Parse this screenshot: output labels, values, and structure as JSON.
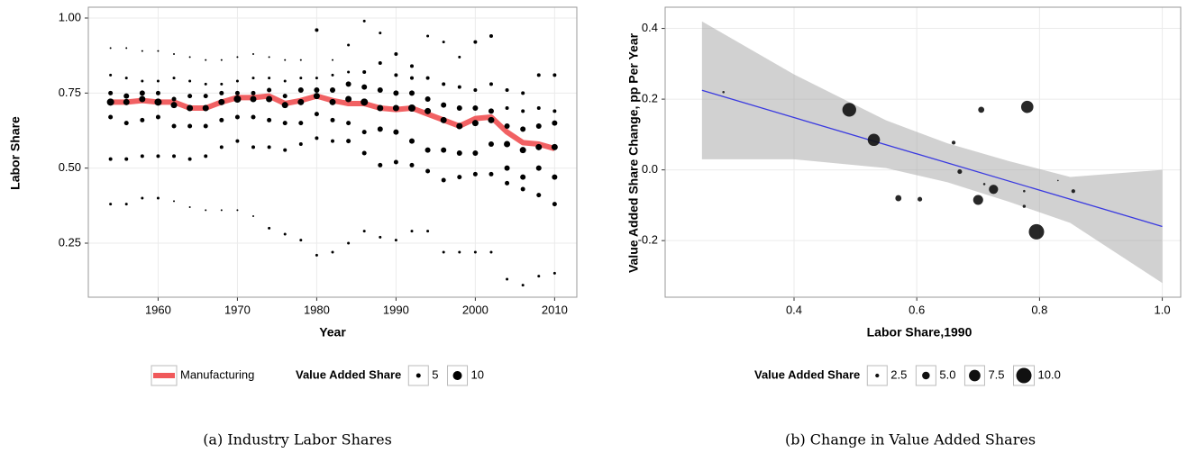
{
  "chart_data": [
    {
      "type": "scatter",
      "caption": "(a) Industry Labor Shares",
      "x_label": "Year",
      "y_label": "Labor Share",
      "xlim": [
        1951.2,
        2012.8
      ],
      "ylim": [
        0.07,
        1.036
      ],
      "xticks": [
        1960,
        1970,
        1980,
        1990,
        2000,
        2010
      ],
      "yticks": [
        0.25,
        {
          "value": 0.5,
          "label": "0.50"
        },
        {
          "value": 0.75,
          "label": "0.75"
        },
        {
          "value": 1,
          "label": "1.00"
        }
      ],
      "grid": true,
      "color": "#000000",
      "x": [
        1954,
        1956,
        1958,
        1960,
        1962,
        1964,
        1966,
        1968,
        1970,
        1972,
        1974,
        1976,
        1978,
        1980,
        1982,
        1984,
        1986,
        1988,
        1990,
        1992,
        1994,
        1996,
        1998,
        2000,
        2002,
        2004,
        2006,
        2008,
        2010
      ],
      "y": [
        [
          0.9,
          0.81,
          0.75,
          0.72,
          0.67,
          0.53,
          0.38
        ],
        [
          0.9,
          0.8,
          0.74,
          0.72,
          0.65,
          0.53,
          0.38
        ],
        [
          0.89,
          0.79,
          0.75,
          0.73,
          0.66,
          0.54,
          0.4
        ],
        [
          0.89,
          0.79,
          0.75,
          0.72,
          0.67,
          0.54,
          0.4
        ],
        [
          0.88,
          0.8,
          0.73,
          0.71,
          0.64,
          0.54,
          0.39
        ],
        [
          0.87,
          0.79,
          0.74,
          0.7,
          0.64,
          0.53,
          0.37
        ],
        [
          0.86,
          0.78,
          0.74,
          0.7,
          0.64,
          0.54,
          0.36
        ],
        [
          0.86,
          0.78,
          0.75,
          0.72,
          0.66,
          0.57,
          0.36
        ],
        [
          0.87,
          0.79,
          0.75,
          0.73,
          0.67,
          0.59,
          0.36
        ],
        [
          0.88,
          0.8,
          0.75,
          0.73,
          0.67,
          0.57,
          0.34
        ],
        [
          0.87,
          0.8,
          0.76,
          0.73,
          0.66,
          0.57,
          0.3
        ],
        [
          0.86,
          0.79,
          0.74,
          0.71,
          0.65,
          0.56,
          0.28
        ],
        [
          0.86,
          0.8,
          0.76,
          0.72,
          0.65,
          0.58,
          0.26
        ],
        [
          0.96,
          0.8,
          0.76,
          0.74,
          0.68,
          0.6,
          0.21
        ],
        [
          0.86,
          0.81,
          0.76,
          0.72,
          0.66,
          0.59,
          0.22
        ],
        [
          0.91,
          0.82,
          0.78,
          0.73,
          0.65,
          0.59,
          0.25
        ],
        [
          0.99,
          0.82,
          0.77,
          0.72,
          0.62,
          0.55,
          0.29
        ],
        [
          0.95,
          0.85,
          0.76,
          0.7,
          0.63,
          0.51,
          0.27
        ],
        [
          0.88,
          0.81,
          0.75,
          0.7,
          0.62,
          0.52,
          0.26
        ],
        [
          0.84,
          0.8,
          0.75,
          0.7,
          0.59,
          0.51,
          0.29
        ],
        [
          0.94,
          0.8,
          0.73,
          0.69,
          0.56,
          0.49,
          0.29
        ],
        [
          0.92,
          0.78,
          0.71,
          0.66,
          0.56,
          0.46,
          0.22
        ],
        [
          0.87,
          0.77,
          0.7,
          0.64,
          0.55,
          0.47,
          0.22
        ],
        [
          0.92,
          0.76,
          0.7,
          0.65,
          0.55,
          0.48,
          0.22
        ],
        [
          0.94,
          0.78,
          0.69,
          0.66,
          0.58,
          0.48,
          0.22
        ],
        [
          0.76,
          0.7,
          0.64,
          0.58,
          0.5,
          0.45,
          0.13
        ],
        [
          0.75,
          0.69,
          0.63,
          0.56,
          0.47,
          0.43,
          0.11
        ],
        [
          0.81,
          0.7,
          0.64,
          0.57,
          0.5,
          0.41,
          0.14
        ],
        [
          0.81,
          0.69,
          0.65,
          0.57,
          0.47,
          0.38,
          0.15
        ]
      ],
      "size": [
        [
          2,
          3,
          5,
          8,
          5,
          4,
          3
        ],
        [
          2,
          3,
          6,
          7,
          5,
          4,
          3
        ],
        [
          2,
          3,
          6,
          7,
          5,
          4,
          3
        ],
        [
          2,
          3,
          5,
          8,
          5,
          4,
          3
        ],
        [
          2,
          3,
          5,
          7,
          5,
          4,
          2
        ],
        [
          2,
          3,
          5,
          7,
          5,
          4,
          2
        ],
        [
          2,
          3,
          5,
          7,
          5,
          4,
          2
        ],
        [
          2,
          3,
          5,
          7,
          5,
          4,
          2
        ],
        [
          2,
          3,
          5,
          8,
          5,
          4,
          2
        ],
        [
          2,
          3,
          5,
          7,
          5,
          4,
          2
        ],
        [
          2,
          3,
          5,
          7,
          5,
          4,
          3
        ],
        [
          2,
          3,
          5,
          7,
          5,
          4,
          3
        ],
        [
          2,
          3,
          6,
          7,
          5,
          4,
          3
        ],
        [
          4,
          3,
          6,
          7,
          5,
          4,
          3
        ],
        [
          2,
          3,
          6,
          7,
          5,
          4,
          3
        ],
        [
          3,
          3,
          6,
          7,
          5,
          5,
          3
        ],
        [
          3,
          4,
          6,
          8,
          5,
          5,
          3
        ],
        [
          3,
          4,
          6,
          7,
          6,
          5,
          3
        ],
        [
          4,
          4,
          6,
          7,
          6,
          5,
          3
        ],
        [
          4,
          4,
          6,
          8,
          6,
          5,
          3
        ],
        [
          3,
          4,
          6,
          7,
          6,
          5,
          3
        ],
        [
          3,
          4,
          6,
          7,
          6,
          5,
          3
        ],
        [
          3,
          4,
          6,
          7,
          6,
          5,
          3
        ],
        [
          4,
          4,
          6,
          7,
          6,
          5,
          3
        ],
        [
          4,
          4,
          6,
          7,
          6,
          5,
          3
        ],
        [
          4,
          4,
          6,
          7,
          6,
          5,
          3
        ],
        [
          4,
          4,
          6,
          7,
          6,
          5,
          3
        ],
        [
          4,
          4,
          6,
          7,
          6,
          5,
          3
        ],
        [
          4,
          4,
          6,
          7,
          6,
          5,
          3
        ]
      ],
      "line": {
        "name": "Manufacturing",
        "color": "#f0595b",
        "x": [
          1954,
          1956,
          1958,
          1960,
          1962,
          1964,
          1966,
          1968,
          1970,
          1972,
          1974,
          1976,
          1978,
          1980,
          1982,
          1984,
          1986,
          1988,
          1990,
          1992,
          1994,
          1996,
          1998,
          2000,
          2002,
          2004,
          2006,
          2008,
          2010
        ],
        "y": [
          0.72,
          0.72,
          0.725,
          0.72,
          0.72,
          0.7,
          0.7,
          0.72,
          0.735,
          0.735,
          0.74,
          0.715,
          0.725,
          0.74,
          0.725,
          0.715,
          0.715,
          0.7,
          0.695,
          0.7,
          0.68,
          0.66,
          0.64,
          0.665,
          0.67,
          0.62,
          0.585,
          0.58,
          0.565
        ]
      },
      "size_legend": {
        "title": "Value Added Share",
        "values": [
          5,
          10
        ]
      }
    },
    {
      "type": "scatter",
      "caption": "(b) Change in Value Added Shares",
      "x_label": "Labor Share,1990",
      "y_label": "Value Added Share Change, pp Per Year",
      "xlim": [
        0.19,
        1.03
      ],
      "ylim": [
        -0.36,
        0.46
      ],
      "xticks": [
        0.4,
        0.6,
        0.8,
        {
          "value": 1,
          "label": "1.0"
        }
      ],
      "yticks": [
        -0.2,
        {
          "value": 0,
          "label": "0.0"
        },
        0.2,
        0.4
      ],
      "grid": true,
      "color": "#111111",
      "x": [
        0.285,
        0.49,
        0.53,
        0.57,
        0.605,
        0.66,
        0.67,
        0.7,
        0.705,
        0.71,
        0.725,
        0.775,
        0.775,
        0.78,
        0.795,
        0.83,
        0.855
      ],
      "y": [
        0.22,
        0.17,
        0.085,
        -0.08,
        -0.083,
        0.077,
        -0.005,
        -0.085,
        0.17,
        -0.04,
        -0.055,
        -0.06,
        -0.103,
        0.178,
        -0.175,
        -0.03,
        -0.06
      ],
      "size": [
        1.5,
        9,
        8,
        4,
        3,
        2.5,
        3,
        6.5,
        4,
        1.5,
        6,
        1.5,
        2,
        8,
        10,
        1,
        2.5
      ],
      "fit": {
        "color": "#3a3ae0",
        "x": [
          0.25,
          1.0
        ],
        "y": [
          0.225,
          -0.16
        ]
      },
      "ribbon": {
        "color": "#999999",
        "x": [
          0.25,
          0.4,
          0.55,
          0.65,
          0.75,
          0.85,
          1.0
        ],
        "upper": [
          0.42,
          0.27,
          0.14,
          0.075,
          0.025,
          -0.02,
          0.0
        ],
        "lower": [
          0.03,
          0.03,
          0.005,
          -0.035,
          -0.09,
          -0.15,
          -0.32
        ]
      },
      "size_legend": {
        "title": "Value Added Share",
        "values": [
          {
            "value": 2.5,
            "label": "2.5"
          },
          {
            "value": 5,
            "label": "5.0"
          },
          {
            "value": 7.5,
            "label": "7.5"
          },
          {
            "value": 10,
            "label": "10.0"
          }
        ]
      }
    }
  ]
}
